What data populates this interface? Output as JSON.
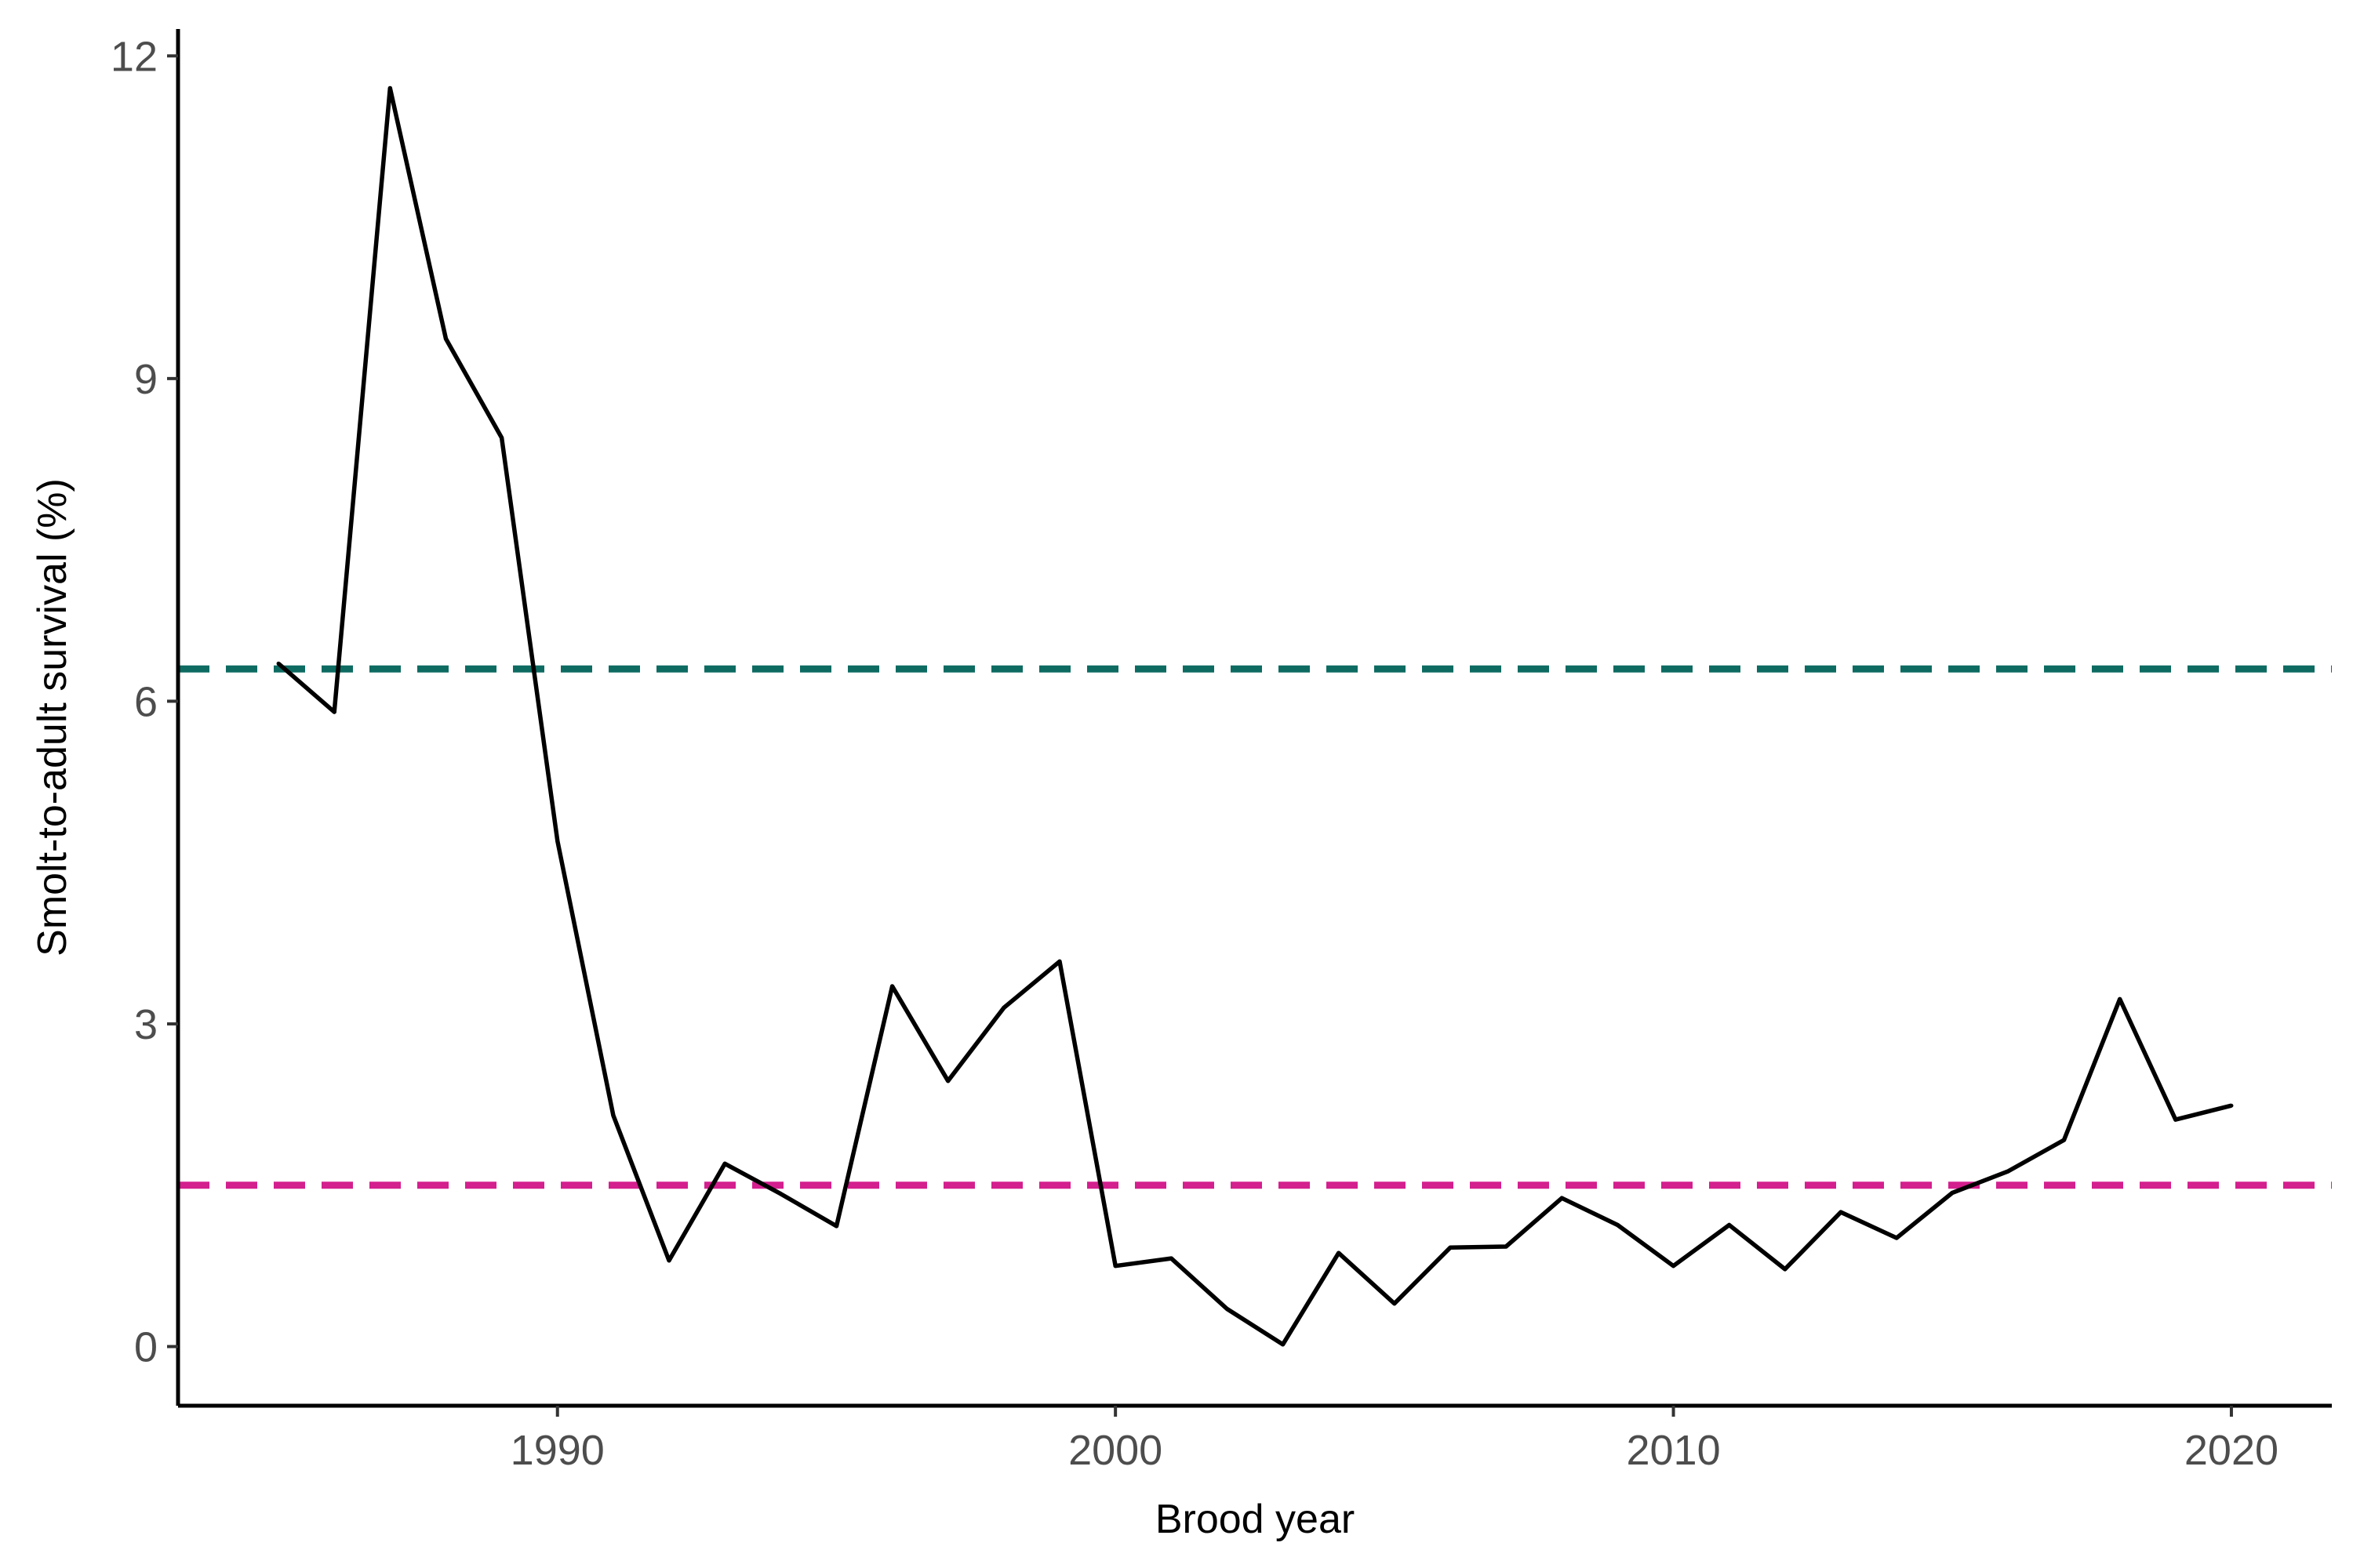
{
  "chart_data": {
    "type": "line",
    "title": "",
    "xlabel": "Brood year",
    "ylabel": "Smolt-to-adult survival (%)",
    "xlim": [
      1983.2,
      2021.8
    ],
    "ylim": [
      -0.55,
      12.25
    ],
    "xticks": [
      1990,
      2000,
      2010,
      2020
    ],
    "yticks": [
      0,
      3,
      6,
      9,
      12
    ],
    "grid": false,
    "legend": "none",
    "series": [
      {
        "color": "#000000",
        "x": [
          1985,
          1986,
          1987,
          1988,
          1989,
          1990,
          1991,
          1992,
          1993,
          1994,
          1995,
          1996,
          1997,
          1998,
          1999,
          2000,
          2001,
          2002,
          2003,
          2004,
          2005,
          2006,
          2007,
          2008,
          2009,
          2010,
          2011,
          2012,
          2013,
          2014,
          2015,
          2016,
          2017,
          2018,
          2019,
          2020
        ],
        "y": [
          6.35,
          5.9,
          11.7,
          9.37,
          8.45,
          4.7,
          2.15,
          0.8,
          1.7,
          1.42,
          1.12,
          3.35,
          2.47,
          3.15,
          3.58,
          0.75,
          0.82,
          0.35,
          0.02,
          0.87,
          0.4,
          0.92,
          0.93,
          1.38,
          1.13,
          0.75,
          1.13,
          0.72,
          1.25,
          1.01,
          1.43,
          1.63,
          1.92,
          3.23,
          2.11,
          2.24
        ]
      }
    ],
    "reference_lines": [
      {
        "y": 6.3,
        "color": "#0d6b62",
        "style": "dashed"
      },
      {
        "y": 1.5,
        "color": "#d41f8e",
        "style": "dashed"
      }
    ]
  }
}
